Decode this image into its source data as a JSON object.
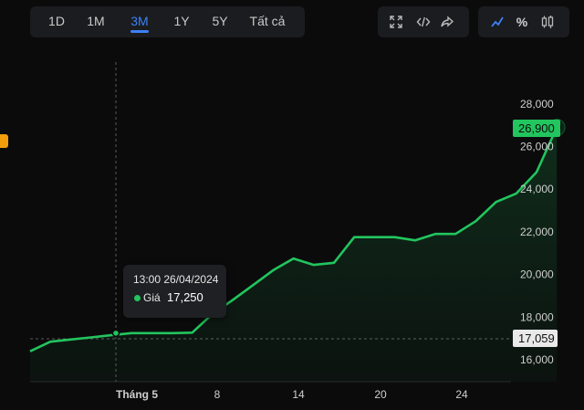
{
  "range_tabs": [
    {
      "label": "1D",
      "active": false
    },
    {
      "label": "1M",
      "active": false
    },
    {
      "label": "3M",
      "active": true
    },
    {
      "label": "1Y",
      "active": false
    },
    {
      "label": "5Y",
      "active": false
    },
    {
      "label": "Tất cả",
      "active": false
    }
  ],
  "tools": {
    "expand_icon": "expand-icon",
    "embed_icon": "code-icon",
    "share_icon": "share-icon"
  },
  "modes": {
    "line_icon": "line-chart-icon",
    "percent_label": "%",
    "candle_icon": "candlestick-icon"
  },
  "tooltip": {
    "datetime": "13:00 26/04/2024",
    "label": "Giá",
    "value": "17,250"
  },
  "price_tags": {
    "current": "26,900",
    "cursor": "17,059"
  },
  "colors": {
    "accent": "#3b82f6",
    "line": "#22c55e",
    "tag": "#f59e0b"
  },
  "chart_data": {
    "type": "area",
    "y_axis_ticks": [
      "28,000",
      "26,000",
      "24,000",
      "22,000",
      "20,000",
      "18,000",
      "16,000"
    ],
    "y_tick_values": [
      28000,
      26000,
      24000,
      22000,
      20000,
      18000,
      16000
    ],
    "x_axis_labels": [
      "Tháng 5",
      "8",
      "14",
      "20",
      "24"
    ],
    "ylim": [
      16000,
      28000
    ],
    "series": [
      {
        "values": [
          16400,
          16850,
          16950,
          17050,
          17150,
          17250,
          17250,
          17250,
          17270,
          18150,
          18800,
          19500,
          20200,
          20750,
          20450,
          20550,
          21750,
          21750,
          21750,
          21600,
          21900,
          21900,
          22500,
          23400,
          23800,
          24800,
          26900
        ]
      }
    ]
  }
}
